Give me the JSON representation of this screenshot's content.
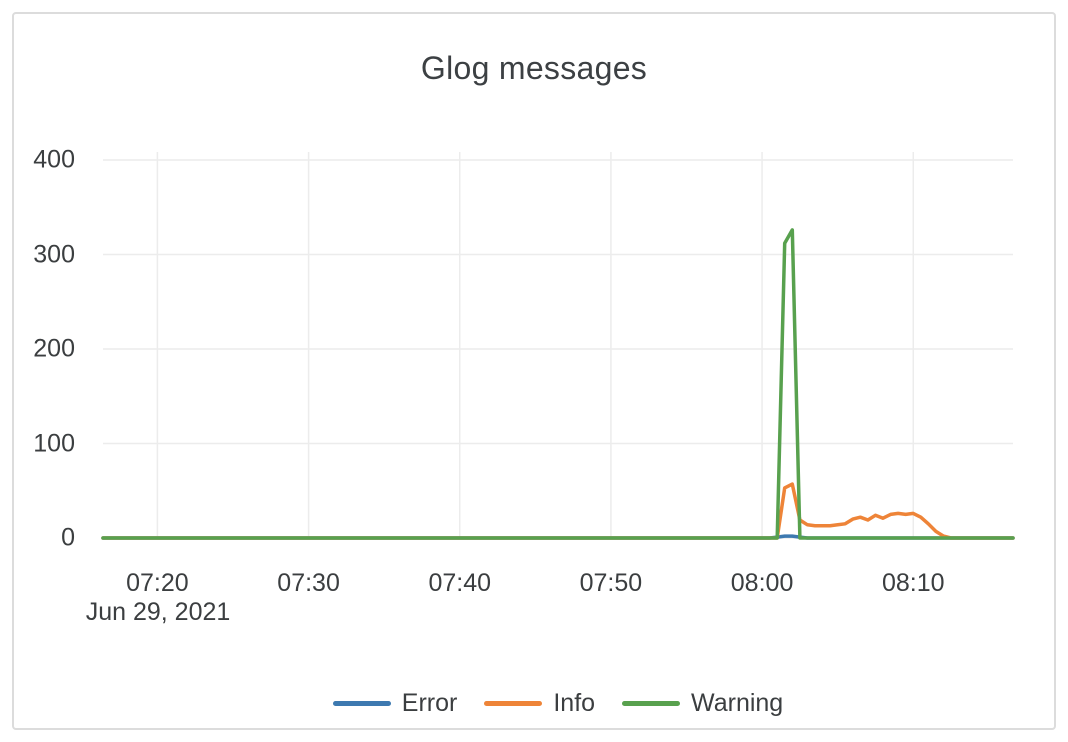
{
  "chart_data": {
    "type": "line",
    "title": "Glog messages",
    "x_axis": {
      "date_label": "Jun 29, 2021",
      "tick_labels": [
        "07:20",
        "07:30",
        "07:40",
        "07:50",
        "08:00",
        "08:10"
      ],
      "tick_minutes": [
        20,
        30,
        40,
        50,
        60,
        70
      ],
      "range_minutes": [
        16.4,
        76.6
      ]
    },
    "y_axis": {
      "tick_labels": [
        "0",
        "100",
        "200",
        "300",
        "400"
      ],
      "tick_values": [
        0,
        100,
        200,
        300,
        400
      ],
      "range": [
        0,
        400
      ]
    },
    "grid": true,
    "legend_position": "bottom-center",
    "series": [
      {
        "name": "Error",
        "color": "#3d79b0",
        "points": [
          [
            16.4,
            0
          ],
          [
            60.5,
            0
          ],
          [
            61,
            1
          ],
          [
            61.5,
            2
          ],
          [
            62,
            2
          ],
          [
            62.5,
            1
          ],
          [
            63,
            0
          ],
          [
            76.6,
            0
          ]
        ]
      },
      {
        "name": "Info",
        "color": "#ee8438",
        "points": [
          [
            16.4,
            0
          ],
          [
            61,
            0
          ],
          [
            61.5,
            53
          ],
          [
            62,
            57
          ],
          [
            62.5,
            19
          ],
          [
            63,
            14
          ],
          [
            63.5,
            13
          ],
          [
            64,
            13
          ],
          [
            64.5,
            13
          ],
          [
            65,
            14
          ],
          [
            65.5,
            15
          ],
          [
            66,
            20
          ],
          [
            66.5,
            22
          ],
          [
            67,
            19
          ],
          [
            67.5,
            24
          ],
          [
            68,
            21
          ],
          [
            68.5,
            25
          ],
          [
            69,
            26
          ],
          [
            69.5,
            25
          ],
          [
            70,
            26
          ],
          [
            70.5,
            22
          ],
          [
            71,
            15
          ],
          [
            71.5,
            7
          ],
          [
            72,
            2
          ],
          [
            72.5,
            0
          ],
          [
            76.6,
            0
          ]
        ]
      },
      {
        "name": "Warning",
        "color": "#58a14e",
        "points": [
          [
            16.4,
            0
          ],
          [
            61,
            0
          ],
          [
            61.5,
            312
          ],
          [
            62,
            326
          ],
          [
            62.5,
            0
          ],
          [
            76.6,
            0
          ]
        ]
      }
    ]
  },
  "palette": {
    "grid": "#ececec",
    "card_border": "#dcdcdc",
    "title_text": "#3c4043",
    "axis_text": "#3b3e40"
  }
}
